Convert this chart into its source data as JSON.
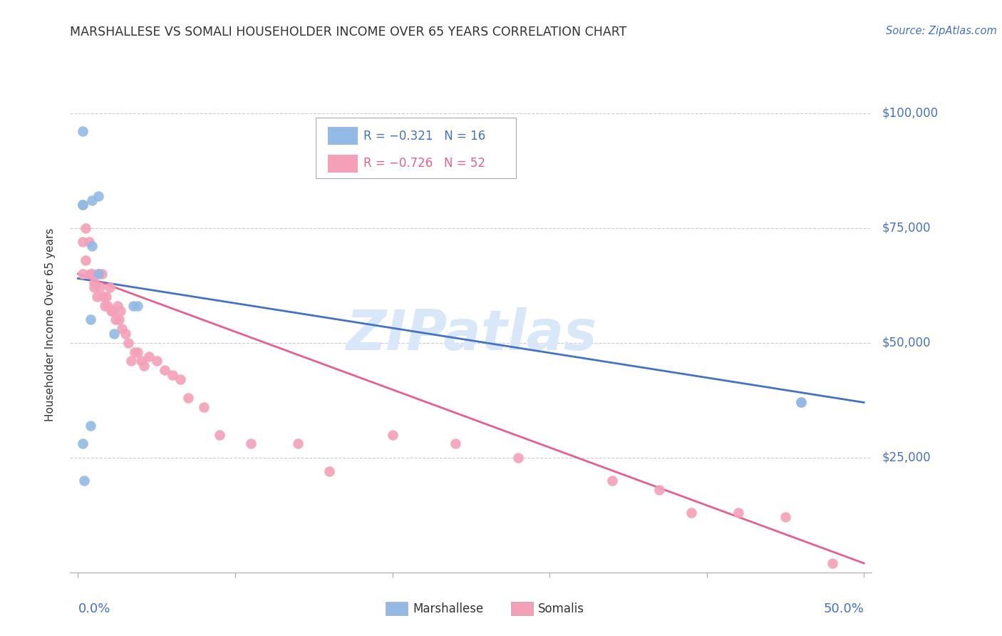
{
  "title": "MARSHALLESE VS SOMALI HOUSEHOLDER INCOME OVER 65 YEARS CORRELATION CHART",
  "source": "Source: ZipAtlas.com",
  "ylabel": "Householder Income Over 65 years",
  "legend_blue_label": "Marshallese",
  "legend_pink_label": "Somalis",
  "legend_blue_r": "R = −0.321",
  "legend_blue_n": "N = 16",
  "legend_pink_r": "R = −0.726",
  "legend_pink_n": "N = 52",
  "blue_color": "#92BAE4",
  "pink_color": "#F4A0B8",
  "blue_line_color": "#4472C4",
  "pink_line_color": "#E8608A",
  "axis_label_color": "#4472C4",
  "watermark_color": "#D8E8F8",
  "ylim": [
    0,
    108000
  ],
  "xlim": [
    -0.005,
    0.505
  ],
  "y_tick_values": [
    25000,
    50000,
    75000,
    100000
  ],
  "y_tick_labels": [
    "$25,000",
    "$50,000",
    "$75,000",
    "$100,000"
  ],
  "blue_scatter_x": [
    0.003,
    0.009,
    0.013,
    0.009,
    0.003,
    0.003,
    0.008,
    0.013,
    0.008,
    0.035,
    0.038,
    0.023,
    0.46,
    0.46,
    0.003,
    0.004
  ],
  "blue_scatter_y": [
    96000,
    81000,
    82000,
    71000,
    80000,
    80000,
    55000,
    65000,
    32000,
    58000,
    58000,
    52000,
    37000,
    37000,
    28000,
    20000
  ],
  "pink_scatter_x": [
    0.003,
    0.003,
    0.005,
    0.005,
    0.007,
    0.008,
    0.009,
    0.01,
    0.01,
    0.012,
    0.013,
    0.014,
    0.015,
    0.016,
    0.017,
    0.018,
    0.019,
    0.02,
    0.021,
    0.022,
    0.024,
    0.025,
    0.026,
    0.027,
    0.028,
    0.03,
    0.032,
    0.034,
    0.036,
    0.038,
    0.04,
    0.042,
    0.045,
    0.05,
    0.055,
    0.06,
    0.065,
    0.07,
    0.08,
    0.09,
    0.11,
    0.14,
    0.16,
    0.2,
    0.24,
    0.28,
    0.34,
    0.37,
    0.39,
    0.42,
    0.45,
    0.48
  ],
  "pink_scatter_y": [
    72000,
    65000,
    75000,
    68000,
    72000,
    65000,
    65000,
    63000,
    62000,
    60000,
    65000,
    62000,
    65000,
    60000,
    58000,
    60000,
    58000,
    62000,
    57000,
    57000,
    55000,
    58000,
    55000,
    57000,
    53000,
    52000,
    50000,
    46000,
    48000,
    48000,
    46000,
    45000,
    47000,
    46000,
    44000,
    43000,
    42000,
    38000,
    36000,
    30000,
    28000,
    28000,
    22000,
    30000,
    28000,
    25000,
    20000,
    18000,
    13000,
    13000,
    12000,
    2000
  ],
  "blue_line_x": [
    0.0,
    0.5
  ],
  "blue_line_y": [
    64000,
    37000
  ],
  "pink_line_x": [
    0.0,
    0.5
  ],
  "pink_line_y": [
    65000,
    2000
  ]
}
